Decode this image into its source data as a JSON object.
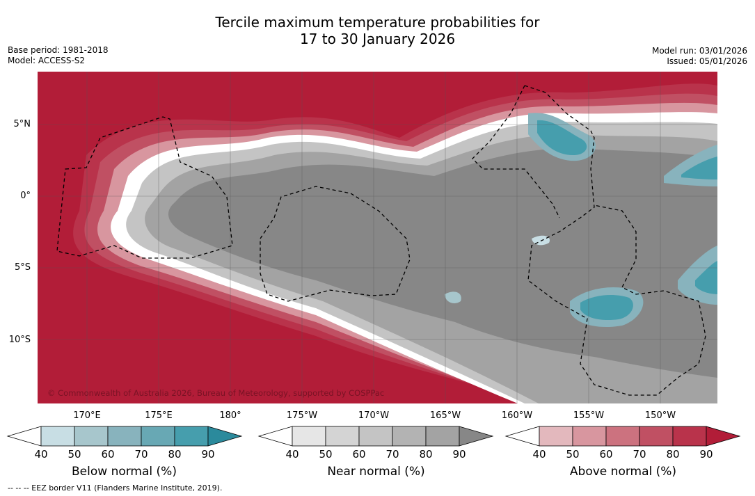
{
  "title": {
    "line1": "Tercile maximum temperature probabilities for",
    "line2": "17 to 30 January 2026"
  },
  "meta": {
    "base_period": "Base period: 1981-2018",
    "model": "Model: ACCESS-S2",
    "model_run": "Model run: 03/01/2026",
    "issued": "Issued: 05/01/2026"
  },
  "map": {
    "copyright": "© Commonwealth of Australia 2026, Bureau of Meteorology, supported by COSPPac",
    "lat_labels": [
      "5°N",
      "0°",
      "5°S",
      "10°S"
    ],
    "lon_labels": [
      "170°E",
      "175°E",
      "180°",
      "175°W",
      "170°W",
      "165°W",
      "160°W",
      "155°W",
      "150°W"
    ]
  },
  "legends": {
    "below": {
      "title": "Below normal (%)",
      "ticks": [
        "40",
        "50",
        "60",
        "70",
        "80",
        "90"
      ],
      "colors": [
        "#ffffff",
        "#c8dee4",
        "#a7c6cc",
        "#88b3bd",
        "#68a8b4",
        "#469ead",
        "#2b8a9c"
      ]
    },
    "near": {
      "title": "Near normal (%)",
      "ticks": [
        "40",
        "50",
        "60",
        "70",
        "80",
        "90"
      ],
      "colors": [
        "#ffffff",
        "#e6e6e6",
        "#d4d4d4",
        "#c4c4c4",
        "#b3b3b3",
        "#a3a3a3",
        "#878787"
      ]
    },
    "above": {
      "title": "Above normal (%)",
      "ticks": [
        "40",
        "50",
        "60",
        "70",
        "80",
        "90"
      ],
      "colors": [
        "#ffffff",
        "#e3b8bd",
        "#d8969f",
        "#cc727f",
        "#c05063",
        "#b9334b",
        "#b21d38"
      ]
    }
  },
  "footnote": "--  --  -- EEZ border V11 (Flanders Marine Institute, 2019)."
}
